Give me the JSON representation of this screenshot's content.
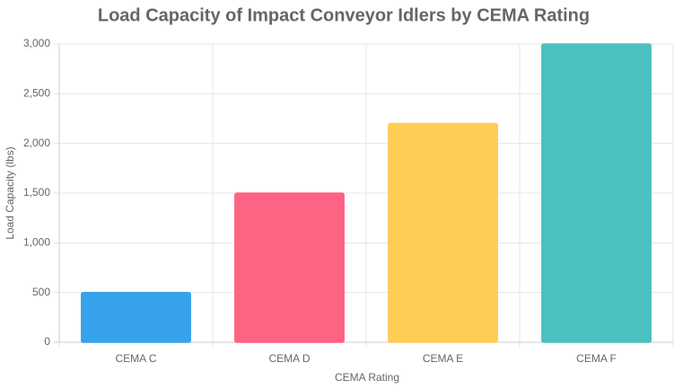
{
  "chart_data": {
    "type": "bar",
    "title": "Load Capacity of Impact Conveyor Idlers by CEMA Rating",
    "x_label": "CEMA Rating",
    "y_label": "Load Capacity (lbs)",
    "categories": [
      "CEMA C",
      "CEMA D",
      "CEMA E",
      "CEMA F"
    ],
    "values": [
      500,
      1500,
      2200,
      3000
    ],
    "colors": [
      "#36a2eb",
      "#ff6384",
      "#ffcd56",
      "#4bc0c0"
    ],
    "ylim": [
      0,
      3000
    ],
    "yticks": [
      0,
      500,
      {
        "value": 1000,
        "label": "1,000"
      },
      {
        "value": 1500,
        "label": "1,500"
      },
      {
        "value": 2000,
        "label": "2,000"
      },
      {
        "value": 2500,
        "label": "2,500"
      },
      {
        "value": 3000,
        "label": "3,000"
      }
    ],
    "grid": true
  }
}
